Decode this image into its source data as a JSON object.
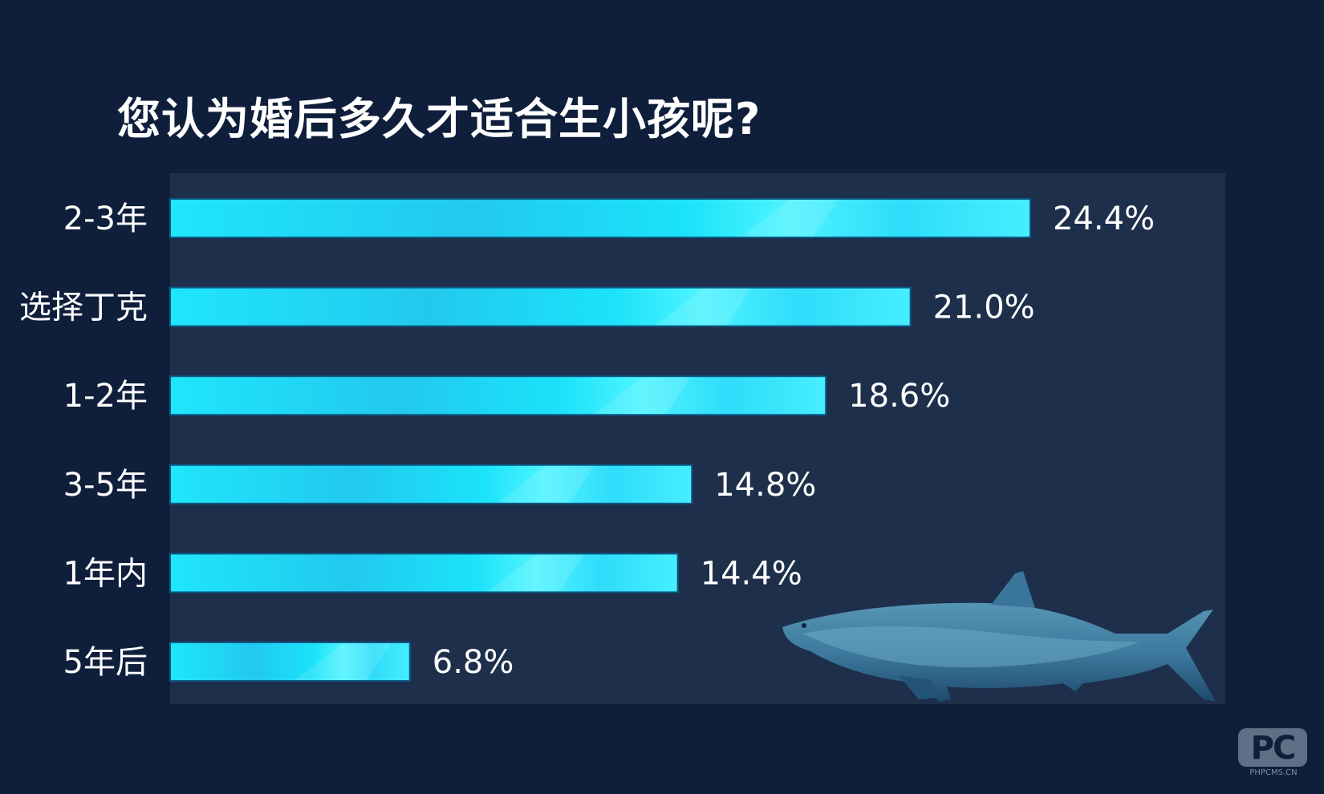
{
  "chart_data": {
    "type": "bar",
    "orientation": "horizontal",
    "title": "您认为婚后多久才适合生小孩呢?",
    "categories": [
      "2-3年",
      "选择丁克",
      "1-2年",
      "3-5年",
      "1年内",
      "5年后"
    ],
    "values": [
      24.4,
      21.0,
      18.6,
      14.8,
      14.4,
      6.8
    ],
    "value_labels": [
      "24.4%",
      "21.0%",
      "18.6%",
      "14.8%",
      "14.4%",
      "6.8%"
    ],
    "unit": "%",
    "xlim": [
      0,
      30
    ],
    "grid": false,
    "legend": "none"
  },
  "colors": {
    "background": "#0f1f3b",
    "plot_background": "#1e2f4b",
    "bar_primary": "#1ed2f2",
    "bar_light": "#4ef0ff",
    "bar_border": "#0a5a86",
    "text": "#ffffff"
  },
  "decoration": {
    "illustration": "shark-illustration",
    "watermark_logo": "PC",
    "watermark_site": "PHPCMS.CN"
  }
}
